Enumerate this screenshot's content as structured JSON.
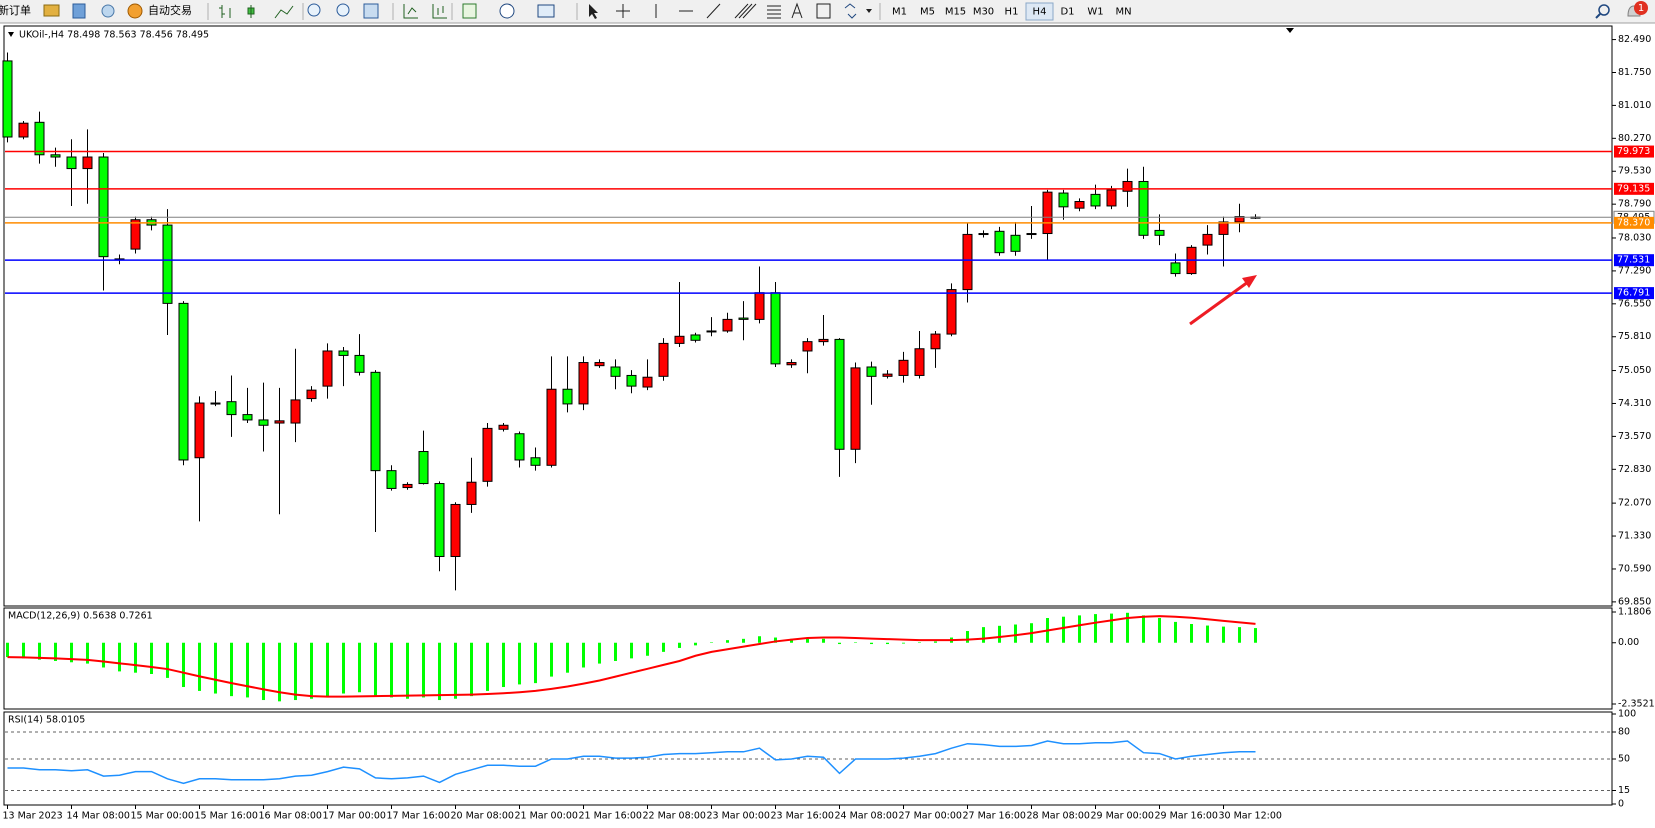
{
  "toolbar": {
    "new_order": "新订单",
    "auto_trading": "自动交易",
    "timeframes": [
      "M1",
      "M5",
      "M15",
      "M30",
      "H1",
      "H4",
      "D1",
      "W1",
      "MN"
    ],
    "notifications": 1
  },
  "chart_data": [
    {
      "type": "candlestick",
      "title": "UKOil-,H4 78.498 78.563 78.456 78.495",
      "categories": [
        "13 Mar 2023",
        null,
        null,
        null,
        "14 Mar 08:00",
        null,
        null,
        null,
        "15 Mar 00:00",
        null,
        null,
        null,
        "15 Mar 16:00",
        null,
        null,
        null,
        "16 Mar 08:00",
        null,
        null,
        null,
        "17 Mar 00:00",
        null,
        null,
        null,
        "17 Mar 16:00",
        null,
        null,
        null,
        "20 Mar 08:00",
        null,
        null,
        null,
        "21 Mar 00:00",
        null,
        null,
        null,
        "21 Mar 16:00",
        null,
        null,
        null,
        "22 Mar 08:00",
        null,
        null,
        null,
        "23 Mar 00:00",
        null,
        null,
        null,
        "23 Mar 16:00",
        null,
        null,
        null,
        "24 Mar 08:00",
        null,
        null,
        null,
        "27 Mar 00:00",
        null,
        null,
        null,
        "27 Mar 16:00",
        null,
        null,
        null,
        "28 Mar 08:00",
        null,
        null,
        null,
        "29 Mar 00:00",
        null,
        null,
        null,
        "29 Mar 16:00",
        null,
        null,
        null,
        "30 Mar 12:00",
        null,
        null
      ],
      "open": [
        82.01,
        80.3,
        80.63,
        79.9,
        79.85,
        79.59,
        79.85,
        77.56,
        77.78,
        78.44,
        78.32,
        76.56,
        73.09,
        74.32,
        74.35,
        74.06,
        73.94,
        73.87,
        73.87,
        74.42,
        74.7,
        75.49,
        75.39,
        75.01,
        72.8,
        72.42,
        73.23,
        72.51,
        70.87,
        72.04,
        72.56,
        73.73,
        73.63,
        73.09,
        72.92,
        74.63,
        74.3,
        75.16,
        75.13,
        74.94,
        74.68,
        74.92,
        75.66,
        75.85,
        75.92,
        75.94,
        76.23,
        76.2,
        76.8,
        75.18,
        75.49,
        75.7,
        75.75,
        73.28,
        75.13,
        74.92,
        74.94,
        74.94,
        75.54,
        75.87,
        76.87,
        78.11,
        78.18,
        78.09,
        78.11,
        78.13,
        79.04,
        78.7,
        79.01,
        78.75,
        79.08,
        79.3,
        78.2,
        77.47,
        77.23,
        77.87,
        78.11,
        78.39,
        78.498
      ],
      "high": [
        82.2,
        80.66,
        80.87,
        80.06,
        80.25,
        80.47,
        79.94,
        77.66,
        78.51,
        78.51,
        78.68,
        76.61,
        74.47,
        74.59,
        74.94,
        74.66,
        74.78,
        74.66,
        75.54,
        74.7,
        75.66,
        75.58,
        75.87,
        75.06,
        72.92,
        72.54,
        73.7,
        72.56,
        72.09,
        73.09,
        73.87,
        73.87,
        73.68,
        73.32,
        75.37,
        75.37,
        75.37,
        75.3,
        75.3,
        75.06,
        75.3,
        75.78,
        77.04,
        75.9,
        76.25,
        76.35,
        76.61,
        77.39,
        77.04,
        75.3,
        75.78,
        76.3,
        75.78,
        75.23,
        75.25,
        75.06,
        75.47,
        75.94,
        75.94,
        77.01,
        78.37,
        78.2,
        78.28,
        78.39,
        78.75,
        79.11,
        79.11,
        78.92,
        79.23,
        79.2,
        79.59,
        79.63,
        78.56,
        77.68,
        77.87,
        78.32,
        78.51,
        78.8,
        78.563
      ],
      "low": [
        80.18,
        80.25,
        79.7,
        79.63,
        78.75,
        78.8,
        76.85,
        77.44,
        77.68,
        78.2,
        75.85,
        72.92,
        71.66,
        74.25,
        73.56,
        73.87,
        73.23,
        71.82,
        73.44,
        74.35,
        74.42,
        74.7,
        74.94,
        71.42,
        72.35,
        72.37,
        72.49,
        70.54,
        70.11,
        71.85,
        72.44,
        73.68,
        72.87,
        72.8,
        72.87,
        74.11,
        74.16,
        75.11,
        74.63,
        74.54,
        74.61,
        74.82,
        75.58,
        75.68,
        75.82,
        75.9,
        75.73,
        76.11,
        75.13,
        75.11,
        74.99,
        75.61,
        72.66,
        72.97,
        74.28,
        74.87,
        74.78,
        74.87,
        75.11,
        75.82,
        76.58,
        78.04,
        77.63,
        77.63,
        78.01,
        77.54,
        78.44,
        78.63,
        78.68,
        78.68,
        78.73,
        78.01,
        77.87,
        77.16,
        77.2,
        77.66,
        77.39,
        78.16,
        78.456
      ],
      "close": [
        80.3,
        80.61,
        79.9,
        79.85,
        79.59,
        79.85,
        77.61,
        77.54,
        78.44,
        78.32,
        76.56,
        73.04,
        74.32,
        74.3,
        74.06,
        73.94,
        73.82,
        73.92,
        74.39,
        74.61,
        75.49,
        75.39,
        75.01,
        72.8,
        72.4,
        72.49,
        72.51,
        70.87,
        72.04,
        72.54,
        73.75,
        73.82,
        73.04,
        72.92,
        74.63,
        74.3,
        75.23,
        75.23,
        74.92,
        74.7,
        74.9,
        75.66,
        75.82,
        75.73,
        75.94,
        76.2,
        76.2,
        76.8,
        75.2,
        75.23,
        75.7,
        75.75,
        73.28,
        75.11,
        74.92,
        74.97,
        75.28,
        75.54,
        75.87,
        76.87,
        78.11,
        78.13,
        77.7,
        77.73,
        78.13,
        79.06,
        78.73,
        78.85,
        78.75,
        79.11,
        79.3,
        78.09,
        78.09,
        77.23,
        77.82,
        78.11,
        78.39,
        78.51,
        78.495
      ],
      "up_color": "#ff0000",
      "down_color": "#00ff00",
      "current_color": "#808080",
      "ylim": [
        69.78,
        82.75
      ],
      "yticks": [
        {
          "value": 82.49,
          "label": "82.490"
        },
        {
          "value": 81.75,
          "label": "81.750"
        },
        {
          "value": 81.01,
          "label": "81.010"
        },
        {
          "value": 80.27,
          "label": "80.270"
        },
        {
          "value": 79.53,
          "label": "79.530"
        },
        {
          "value": 78.79,
          "label": "78.790"
        },
        {
          "value": 78.03,
          "label": "78.030"
        },
        {
          "value": 77.29,
          "label": "77.290"
        },
        {
          "value": 76.55,
          "label": "76.550"
        },
        {
          "value": 75.81,
          "label": "75.810"
        },
        {
          "value": 75.05,
          "label": "75.050"
        },
        {
          "value": 74.31,
          "label": "74.310"
        },
        {
          "value": 73.57,
          "label": "73.570"
        },
        {
          "value": 72.83,
          "label": "72.830"
        },
        {
          "value": 72.07,
          "label": "72.070"
        },
        {
          "value": 71.33,
          "label": "71.330"
        },
        {
          "value": 70.59,
          "label": "70.590"
        },
        {
          "value": 69.85,
          "label": "69.850"
        }
      ],
      "levels": [
        {
          "value": 79.973,
          "label": "79.973",
          "color": "#ff0000"
        },
        {
          "value": 79.135,
          "label": "79.135",
          "color": "#ff0000"
        },
        {
          "value": 78.37,
          "label": "78.370",
          "color": "#ff8c00"
        },
        {
          "value": 77.531,
          "label": "77.531",
          "color": "#0000ff"
        },
        {
          "value": 76.791,
          "label": "76.791",
          "color": "#0000ff"
        }
      ]
    },
    {
      "type": "macd",
      "title": "MACD(12,26,9) 0.5638 0.7261",
      "histogram": {
        "color": "#00ff00",
        "values": [
          -0.55,
          -0.6,
          -0.65,
          -0.7,
          -0.75,
          -0.8,
          -0.95,
          -1.1,
          -1.15,
          -1.2,
          -1.35,
          -1.7,
          -1.85,
          -1.95,
          -2.05,
          -2.1,
          -2.2,
          -2.25,
          -2.2,
          -2.15,
          -2.05,
          -1.95,
          -1.9,
          -2.05,
          -2.1,
          -2.15,
          -2.1,
          -2.2,
          -2.15,
          -2.05,
          -1.85,
          -1.7,
          -1.6,
          -1.55,
          -1.3,
          -1.15,
          -0.95,
          -0.8,
          -0.7,
          -0.6,
          -0.5,
          -0.35,
          -0.2,
          -0.1,
          0.02,
          0.1,
          0.15,
          0.25,
          0.2,
          0.15,
          0.15,
          0.15,
          -0.05,
          0.02,
          -0.05,
          -0.05,
          -0.03,
          0.02,
          0.05,
          0.2,
          0.45,
          0.6,
          0.65,
          0.7,
          0.75,
          0.95,
          1.0,
          1.05,
          1.1,
          1.12,
          1.15,
          1.05,
          0.95,
          0.8,
          0.72,
          0.66,
          0.62,
          0.6,
          0.5638
        ]
      },
      "signal": {
        "color": "#ff0000",
        "values": [
          -0.55,
          -0.56,
          -0.58,
          -0.6,
          -0.63,
          -0.66,
          -0.72,
          -0.79,
          -0.86,
          -0.93,
          -1.01,
          -1.15,
          -1.29,
          -1.42,
          -1.55,
          -1.67,
          -1.79,
          -1.9,
          -1.99,
          -2.05,
          -2.07,
          -2.07,
          -2.06,
          -2.05,
          -2.04,
          -2.03,
          -2.02,
          -2.01,
          -2.0,
          -1.99,
          -1.97,
          -1.94,
          -1.9,
          -1.85,
          -1.77,
          -1.68,
          -1.57,
          -1.45,
          -1.3,
          -1.15,
          -1.0,
          -0.85,
          -0.7,
          -0.5,
          -0.35,
          -0.25,
          -0.15,
          -0.05,
          0.05,
          0.12,
          0.18,
          0.2,
          0.2,
          0.18,
          0.16,
          0.14,
          0.12,
          0.1,
          0.1,
          0.1,
          0.12,
          0.16,
          0.22,
          0.29,
          0.37,
          0.47,
          0.57,
          0.67,
          0.77,
          0.86,
          0.95,
          1.0,
          1.02,
          1.0,
          0.96,
          0.9,
          0.84,
          0.78,
          0.7261
        ]
      },
      "ylim": [
        -2.3521,
        1.1806
      ],
      "yticks": [
        1.1806,
        {
          "value": 0,
          "label": "0.00"
        },
        -2.3521
      ]
    },
    {
      "type": "rsi",
      "title": "RSI(14) 58.0105",
      "color": "#1e90ff",
      "values": [
        40,
        40,
        38,
        38,
        37,
        38,
        31,
        32,
        36,
        36,
        28,
        23,
        28,
        28,
        27,
        27,
        27,
        28,
        31,
        32,
        36,
        41,
        39,
        29,
        28,
        29,
        31,
        24,
        33,
        38,
        43,
        43,
        42,
        42,
        50,
        50,
        53,
        53,
        51,
        51,
        52,
        55,
        56,
        56,
        57,
        58,
        58,
        62,
        49,
        50,
        53,
        52,
        34,
        50,
        50,
        50,
        51,
        53,
        56,
        62,
        67,
        66,
        64,
        64,
        65,
        70,
        67,
        67,
        68,
        68,
        70,
        57,
        56,
        50,
        53,
        55,
        57,
        58,
        58.0105
      ],
      "ylim": [
        0,
        100
      ],
      "yticks": [
        100,
        80,
        50,
        15,
        0
      ],
      "levels": [
        80,
        50,
        15
      ]
    }
  ]
}
